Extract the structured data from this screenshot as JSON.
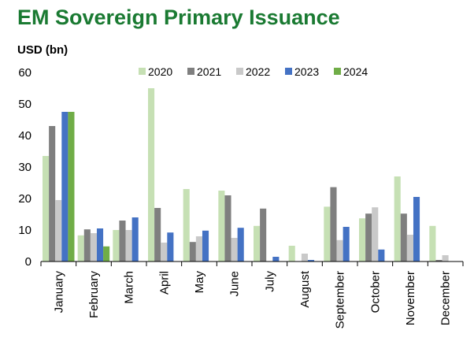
{
  "title": "EM Sovereign Primary Issuance",
  "chart_data": {
    "type": "bar",
    "title": "EM Sovereign Primary Issuance",
    "ylabel": "USD (bn)",
    "xlabel": "",
    "ylim": [
      0,
      60
    ],
    "yticks": [
      "0",
      "10",
      "20",
      "30",
      "40",
      "50",
      "60"
    ],
    "grid": false,
    "legend_position": "top",
    "categories": [
      "January",
      "February",
      "March",
      "April",
      "May",
      "June",
      "July",
      "August",
      "September",
      "October",
      "November",
      "December"
    ],
    "series": [
      {
        "name": "2020",
        "color": "#c6e0b4",
        "values": [
          33.5,
          8.3,
          10,
          55,
          23,
          22.5,
          11.3,
          5,
          17.4,
          13.7,
          27,
          11.3
        ]
      },
      {
        "name": "2021",
        "color": "#7f7f7f",
        "values": [
          43,
          10.2,
          13,
          17,
          6.2,
          21,
          16.8,
          0,
          23.6,
          15.2,
          15.2,
          0.5
        ]
      },
      {
        "name": "2022",
        "color": "#c9c9c9",
        "values": [
          19.5,
          9,
          10,
          6,
          8,
          7.5,
          0,
          2.5,
          6.8,
          17.2,
          8.5,
          2
        ]
      },
      {
        "name": "2023",
        "color": "#4472c4",
        "values": [
          47.5,
          10.5,
          14,
          9.2,
          9.8,
          10.7,
          1.5,
          0.5,
          11,
          3.8,
          20.5,
          0
        ]
      },
      {
        "name": "2024",
        "color": "#70ad47",
        "values": [
          47.5,
          4.8,
          null,
          null,
          null,
          null,
          null,
          null,
          null,
          null,
          null,
          null
        ]
      }
    ]
  }
}
